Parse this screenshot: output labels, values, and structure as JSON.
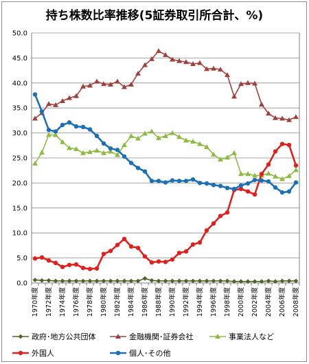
{
  "chart_data": {
    "type": "line",
    "title": "持ち株数比率推移(5証券取引所合計、%)",
    "xlabel": "",
    "ylabel": "",
    "ylim": [
      0,
      50
    ],
    "yticks": [
      "0.0",
      "5.0",
      "10.0",
      "15.0",
      "20.0",
      "25.0",
      "30.0",
      "35.0",
      "40.0",
      "45.0",
      "50.0"
    ],
    "x": [
      1970,
      1971,
      1972,
      1973,
      1974,
      1975,
      1976,
      1977,
      1978,
      1979,
      1980,
      1981,
      1982,
      1983,
      1984,
      1985,
      1986,
      1987,
      1988,
      1989,
      1990,
      1991,
      1992,
      1993,
      1994,
      1995,
      1996,
      1997,
      1998,
      1999,
      2000,
      2001,
      2002,
      2003,
      2004,
      2005,
      2006,
      2007,
      2008
    ],
    "xtick_labels": [
      "1970年度",
      "1972年度",
      "1974年度",
      "1976年度",
      "1978年度",
      "1980年度",
      "1982年度",
      "1984年度",
      "1986年度",
      "1988年度",
      "1990年度",
      "1992年度",
      "1994年度",
      "1996年度",
      "1998年度",
      "2000年度",
      "2002年度",
      "2004年度",
      "2006年度",
      "2008年度"
    ],
    "grid": true,
    "legend_position": "bottom",
    "series": [
      {
        "name": "政府･地方公共団体",
        "color": "#4f6228",
        "marker": "diamond",
        "values": [
          0.6,
          0.5,
          0.5,
          0.4,
          0.4,
          0.4,
          0.4,
          0.4,
          0.4,
          0.4,
          0.4,
          0.4,
          0.4,
          0.4,
          0.4,
          0.4,
          0.9,
          0.5,
          0.4,
          0.4,
          0.4,
          0.4,
          0.4,
          0.4,
          0.4,
          0.4,
          0.4,
          0.4,
          0.4,
          0.3,
          0.3,
          0.3,
          0.3,
          0.3,
          0.4,
          0.3,
          0.4,
          0.4,
          0.4
        ]
      },
      {
        "name": "金融機関･証券会社",
        "color": "#a0403c",
        "marker": "triangle",
        "values": [
          32.9,
          34.0,
          35.8,
          35.6,
          36.4,
          37.0,
          37.4,
          39.3,
          39.5,
          40.3,
          39.8,
          39.7,
          40.3,
          39.2,
          39.7,
          41.9,
          43.6,
          44.8,
          46.4,
          45.6,
          44.7,
          44.4,
          44.2,
          43.8,
          44.0,
          42.8,
          42.9,
          42.7,
          41.6,
          37.3,
          39.8,
          40.0,
          39.9,
          35.7,
          33.9,
          33.0,
          32.9,
          32.6,
          33.2
        ]
      },
      {
        "name": "事業法人など",
        "color": "#8dba41",
        "marker": "triangle",
        "values": [
          23.9,
          26.1,
          29.6,
          29.6,
          28.2,
          27.0,
          26.8,
          26.0,
          26.2,
          26.5,
          26.0,
          26.3,
          25.6,
          27.6,
          29.4,
          28.9,
          29.9,
          30.3,
          29.0,
          29.4,
          30.0,
          29.2,
          28.5,
          28.3,
          27.8,
          27.2,
          25.7,
          24.7,
          25.1,
          26.0,
          21.8,
          21.8,
          21.5,
          21.5,
          21.9,
          21.3,
          20.8,
          21.4,
          22.6
        ]
      },
      {
        "name": "外国人",
        "color": "#e0201c",
        "marker": "circle",
        "values": [
          4.9,
          5.1,
          4.5,
          4.0,
          3.2,
          3.6,
          3.7,
          3.0,
          2.8,
          2.9,
          5.8,
          6.4,
          7.6,
          8.8,
          7.3,
          7.0,
          5.3,
          4.1,
          4.3,
          4.2,
          4.7,
          6.0,
          6.3,
          7.7,
          8.1,
          10.5,
          11.9,
          13.4,
          14.1,
          18.6,
          18.8,
          18.3,
          17.7,
          21.8,
          23.7,
          26.3,
          27.8,
          27.6,
          23.5
        ]
      },
      {
        "name": "個人･その他",
        "color": "#1a6fb5",
        "marker": "circle",
        "values": [
          37.7,
          34.3,
          30.6,
          30.3,
          31.6,
          32.1,
          31.3,
          31.2,
          30.7,
          29.4,
          27.9,
          26.9,
          26.6,
          25.3,
          24.0,
          23.0,
          22.3,
          20.4,
          20.4,
          20.1,
          20.5,
          20.4,
          20.4,
          20.7,
          20.0,
          19.9,
          19.6,
          19.4,
          19.0,
          18.8,
          19.5,
          19.9,
          20.6,
          20.5,
          20.3,
          19.1,
          18.1,
          18.3,
          20.1
        ]
      }
    ]
  }
}
